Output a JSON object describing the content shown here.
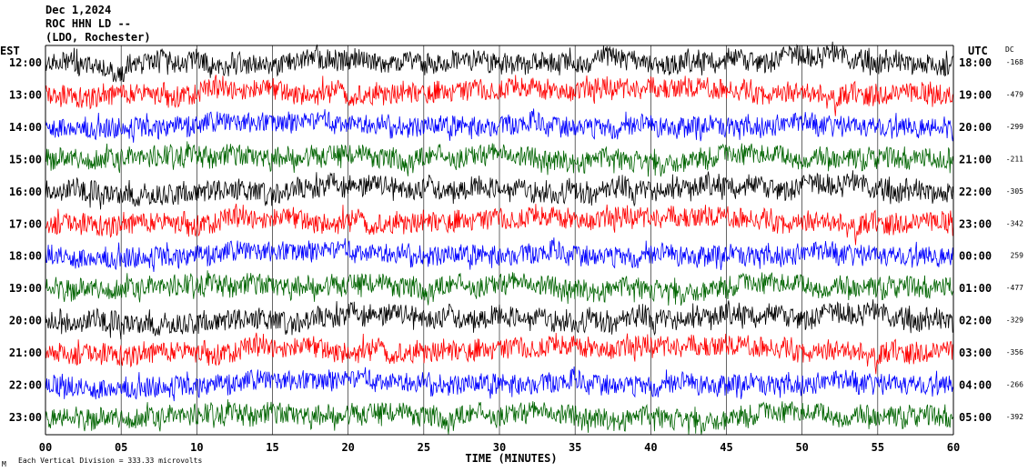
{
  "chart_data": {
    "type": "line",
    "title_lines": [
      "Dec 1,2024",
      "ROC HHN LD --",
      "(LDO, Rochester)"
    ],
    "left_axis_title": "EST",
    "right_axis_title": "UTC",
    "dc_header": "DC",
    "xlabel": "TIME (MINUTES)",
    "x_ticks": [
      "00",
      "05",
      "10",
      "15",
      "20",
      "25",
      "30",
      "35",
      "40",
      "45",
      "50",
      "55",
      "60"
    ],
    "xlim": [
      0,
      60
    ],
    "footnote": "Each Vertical Division =  333.33 microvolts",
    "traces": [
      {
        "est": "12:00",
        "utc": "18:00",
        "dc": "-168",
        "color": "#000000"
      },
      {
        "est": "13:00",
        "utc": "19:00",
        "dc": "-479",
        "color": "#ff0000"
      },
      {
        "est": "14:00",
        "utc": "20:00",
        "dc": "-299",
        "color": "#0000ff"
      },
      {
        "est": "15:00",
        "utc": "21:00",
        "dc": "-211",
        "color": "#006400"
      },
      {
        "est": "16:00",
        "utc": "22:00",
        "dc": "-305",
        "color": "#000000"
      },
      {
        "est": "17:00",
        "utc": "23:00",
        "dc": "-342",
        "color": "#ff0000"
      },
      {
        "est": "18:00",
        "utc": "00:00",
        "dc": "259",
        "color": "#0000ff"
      },
      {
        "est": "19:00",
        "utc": "01:00",
        "dc": "-477",
        "color": "#006400"
      },
      {
        "est": "20:00",
        "utc": "02:00",
        "dc": "-329",
        "color": "#000000"
      },
      {
        "est": "21:00",
        "utc": "03:00",
        "dc": "-356",
        "color": "#ff0000"
      },
      {
        "est": "22:00",
        "utc": "04:00",
        "dc": "-266",
        "color": "#0000ff"
      },
      {
        "est": "23:00",
        "utc": "05:00",
        "dc": "-392",
        "color": "#006400"
      }
    ]
  }
}
